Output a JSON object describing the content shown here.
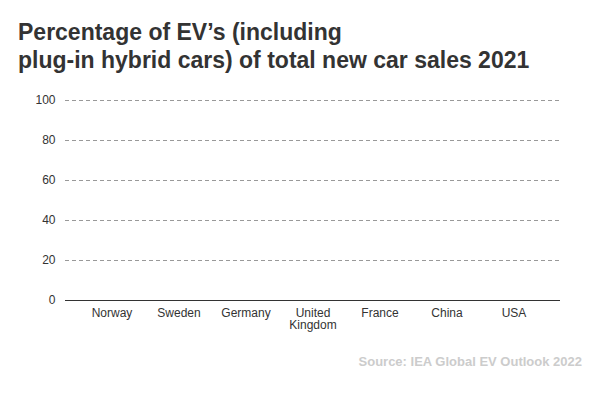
{
  "chart_data": {
    "type": "bar",
    "title": "Percentage of EV’s (including\nplug-in hybrid cars) of total new car sales 2021",
    "categories": [
      "Norway",
      "Sweden",
      "Germany",
      "United Kingdom",
      "France",
      "China",
      "USA"
    ],
    "values": [
      0,
      0,
      0,
      0,
      0,
      0,
      0
    ],
    "ylim": [
      0,
      100
    ],
    "yticks": [
      0,
      20,
      40,
      60,
      80,
      100
    ],
    "grid": true,
    "source": "Source: IEA Global EV Outlook 2022"
  }
}
